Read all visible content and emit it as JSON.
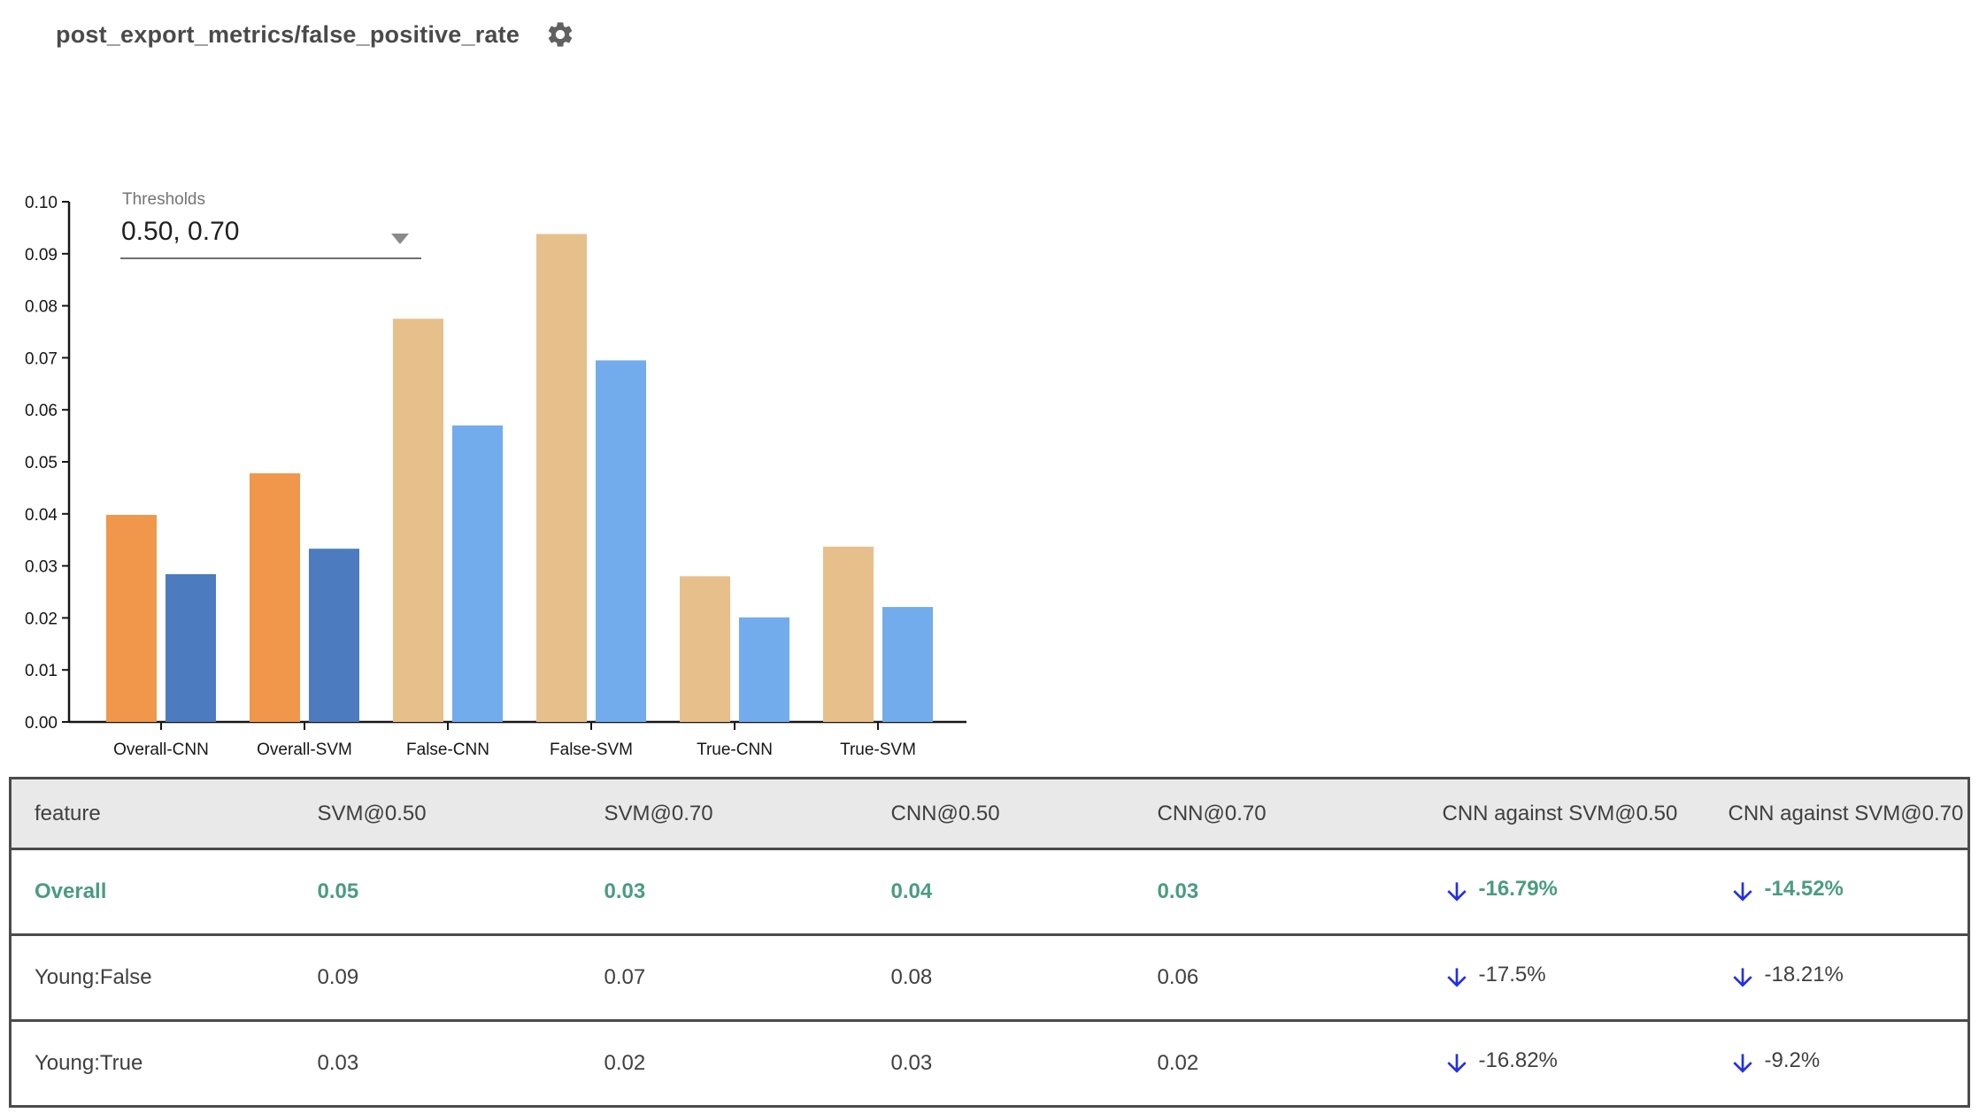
{
  "header": {
    "title": "post_export_metrics/false_positive_rate"
  },
  "thresholds": {
    "label": "Thresholds",
    "value": "0.50, 0.70"
  },
  "icons": {
    "settings_icon": "⚙",
    "caret_down_icon": "▾",
    "arrow_down_icon": "↓"
  },
  "colors": {
    "selected_row": "#4a9c80",
    "delta_arrow": "#2230e8",
    "header_bg": "#e9e9e9",
    "table_border": "#4b4b4b",
    "title_text": "#4a4a4a"
  },
  "chart_data": {
    "type": "bar",
    "title": "post_export_metrics/false_positive_rate",
    "xlabel": "",
    "ylabel": "",
    "categories": [
      "Overall-CNN",
      "Overall-SVM",
      "False-CNN",
      "False-SVM",
      "True-CNN",
      "True-SVM"
    ],
    "series": [
      {
        "name": "threshold 0.50",
        "values": [
          0.0398,
          0.0478,
          0.0775,
          0.0938,
          0.028,
          0.0337
        ]
      },
      {
        "name": "threshold 0.70",
        "values": [
          0.0284,
          0.0333,
          0.057,
          0.0695,
          0.0201,
          0.0221
        ]
      }
    ],
    "ylim": [
      0,
      0.1
    ],
    "ytick_step": 0.01,
    "ytick_labels": [
      "0.00",
      "0.01",
      "0.02",
      "0.03",
      "0.04",
      "0.05",
      "0.06",
      "0.07",
      "0.08",
      "0.09",
      "0.10"
    ],
    "grid": false,
    "legend": "none",
    "highlighted_categories": [
      "Overall-CNN",
      "Overall-SVM"
    ],
    "colors": {
      "series1_highlighted": "#f0974c",
      "series2_highlighted": "#4c7cbf",
      "series1_muted": "#e7bf8b",
      "series2_muted": "#73acec"
    }
  },
  "table": {
    "columns": [
      "feature",
      "SVM@0.50",
      "SVM@0.70",
      "CNN@0.50",
      "CNN@0.70",
      "CNN against SVM@0.50",
      "CNN against SVM@0.70"
    ],
    "rows": [
      {
        "feature": "Overall",
        "values": [
          "0.05",
          "0.03",
          "0.04",
          "0.03"
        ],
        "deltas": [
          "-16.79%",
          "-14.52%"
        ],
        "delta_direction": [
          "down",
          "down"
        ],
        "selected": true
      },
      {
        "feature": "Young:False",
        "values": [
          "0.09",
          "0.07",
          "0.08",
          "0.06"
        ],
        "deltas": [
          "-17.5%",
          "-18.21%"
        ],
        "delta_direction": [
          "down",
          "down"
        ],
        "selected": false
      },
      {
        "feature": "Young:True",
        "values": [
          "0.03",
          "0.02",
          "0.03",
          "0.02"
        ],
        "deltas": [
          "-16.82%",
          "-9.2%"
        ],
        "delta_direction": [
          "down",
          "down"
        ],
        "selected": false
      }
    ]
  }
}
